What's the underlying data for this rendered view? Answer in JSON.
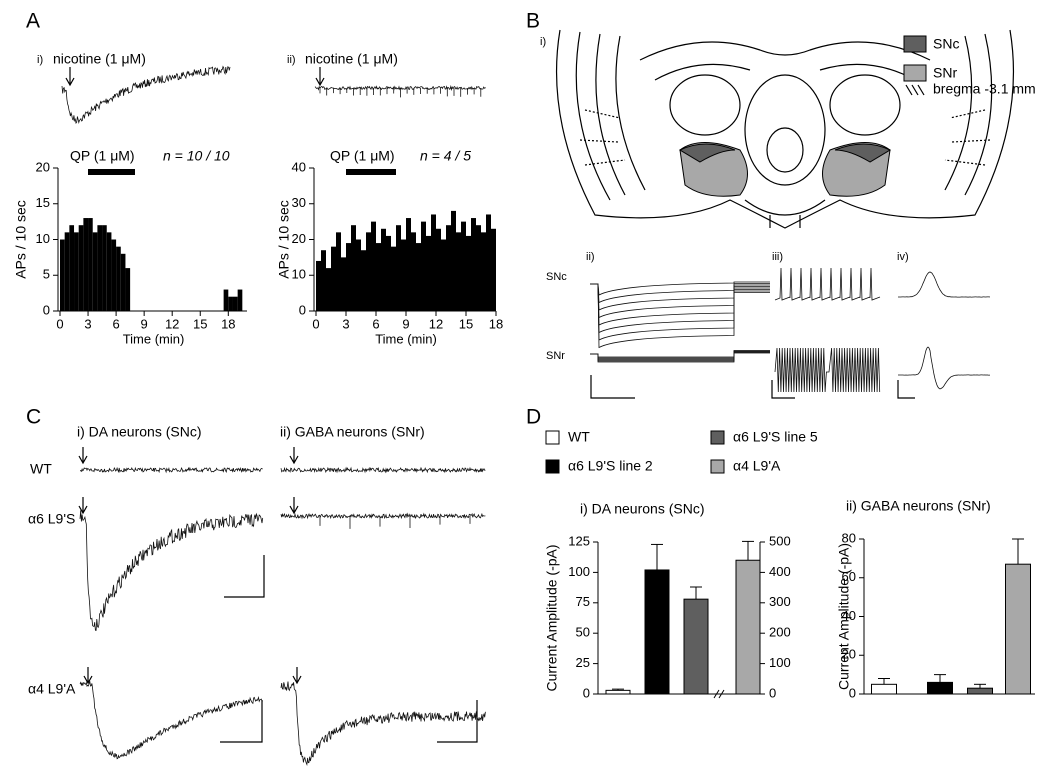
{
  "panel_a": {
    "label": "A",
    "i": {
      "label": "i)",
      "stimulus": "nicotine (1 μM)",
      "drug": "QP (1 μM)",
      "n": "n = 10 / 10"
    },
    "ii": {
      "label": "ii)",
      "stimulus": "nicotine (1 μM)",
      "drug": "QP (1 μM)",
      "n": "n = 4 / 5"
    }
  },
  "panel_b": {
    "label": "B",
    "i_label": "i)",
    "legend": [
      {
        "name": "SNc",
        "color": "#5f5f5f"
      },
      {
        "name": "SNr",
        "color": "#a8a8a8"
      }
    ],
    "bregma": "bregma -3.1 mm",
    "ii_label": "ii)",
    "iii_label": "iii)",
    "iv_label": "iv)",
    "row_labels": [
      "SNc",
      "SNr"
    ]
  },
  "panel_c": {
    "label": "C",
    "columns": [
      "i)  DA neurons (SNc)",
      "ii)  GABA neurons (SNr)"
    ],
    "rows": [
      "WT",
      "α6 L9'S",
      "α4 L9'A"
    ]
  },
  "panel_d": {
    "label": "D"
  },
  "chart_data": [
    {
      "type": "histogram",
      "ylabel": "APs / 10 sec",
      "xlabel": "Time (min)",
      "color": "#000000",
      "bins": [
        0,
        0.5,
        1,
        1.5,
        2,
        2.5,
        3,
        3.5,
        4,
        4.5,
        5,
        5.5,
        6,
        6.5,
        7,
        7.5,
        8,
        8.5,
        9,
        9.5,
        10,
        10.5,
        11,
        11.5,
        12,
        12.5,
        13,
        13.5,
        14,
        14.5,
        15,
        15.5,
        16,
        16.5,
        17,
        17.5,
        18,
        18.5,
        19,
        19.5
      ],
      "values": [
        10,
        11,
        12,
        11,
        12,
        13,
        13,
        11,
        12,
        12,
        11,
        10,
        9,
        8,
        6,
        0,
        0,
        0,
        0,
        0,
        0,
        0,
        0,
        0,
        0,
        0,
        0,
        0,
        0,
        0,
        0,
        0,
        0,
        0,
        0,
        3,
        2,
        2,
        3
      ],
      "xlim": [
        0,
        20
      ],
      "xticks": [
        0,
        3,
        6,
        9,
        12,
        15,
        18
      ],
      "ylim": [
        0,
        20
      ],
      "yticks": [
        0,
        5,
        10,
        15,
        20
      ]
    },
    {
      "type": "histogram",
      "ylabel": "APs / 10 sec",
      "xlabel": "Time (min)",
      "color": "#000000",
      "bins": [
        0,
        0.5,
        1,
        1.5,
        2,
        2.5,
        3,
        3.5,
        4,
        4.5,
        5,
        5.5,
        6,
        6.5,
        7,
        7.5,
        8,
        8.5,
        9,
        9.5,
        10,
        10.5,
        11,
        11.5,
        12,
        12.5,
        13,
        13.5,
        14,
        14.5,
        15,
        15.5,
        16,
        16.5,
        17,
        17.5,
        18
      ],
      "values": [
        14,
        17,
        12,
        18,
        22,
        15,
        19,
        24,
        20,
        17,
        22,
        25,
        19,
        23,
        21,
        18,
        24,
        20,
        26,
        22,
        19,
        25,
        21,
        27,
        23,
        20,
        24,
        28,
        22,
        25,
        21,
        26,
        24,
        22,
        27,
        23
      ],
      "xlim": [
        0,
        18
      ],
      "xticks": [
        0,
        3,
        6,
        9,
        12,
        15,
        18
      ],
      "ylim": [
        0,
        40
      ],
      "yticks": [
        0,
        10,
        20,
        30,
        40
      ]
    },
    {
      "type": "bar",
      "title": "i)  DA neurons (SNc)",
      "ylabel": "Current Amplitude (-pA)",
      "series": [
        {
          "name": "WT",
          "color": "#ffffff",
          "values": [
            3
          ],
          "errors": [
            1
          ]
        },
        {
          "name": "α6 L9'S line 2",
          "color": "#000000",
          "values": [
            102
          ],
          "errors": [
            21
          ]
        },
        {
          "name": "α6 L9'S line 5",
          "color": "#5f5f5f",
          "values": [
            78
          ],
          "errors": [
            10
          ]
        },
        {
          "name": "α4 L9'A",
          "color": "#a8a8a8",
          "values": [
            440
          ],
          "errors": [
            62
          ],
          "axis": "y2"
        }
      ],
      "ylim": [
        0,
        125
      ],
      "yticks": [
        0,
        25,
        50,
        75,
        100,
        125
      ],
      "y2lim": [
        0,
        500
      ],
      "y2ticks": [
        0,
        100,
        200,
        300,
        400,
        500
      ]
    },
    {
      "type": "bar",
      "title": "ii)  GABA neurons (SNr)",
      "ylabel": "Current Amplitude (-pA)",
      "colors": [
        "#ffffff",
        "#000000",
        "#5f5f5f",
        "#a8a8a8"
      ],
      "values": [
        5,
        6,
        3,
        67
      ],
      "errors": [
        3,
        4,
        2,
        13
      ],
      "ylim": [
        0,
        80
      ],
      "yticks": [
        0,
        20,
        40,
        60,
        80
      ]
    }
  ]
}
